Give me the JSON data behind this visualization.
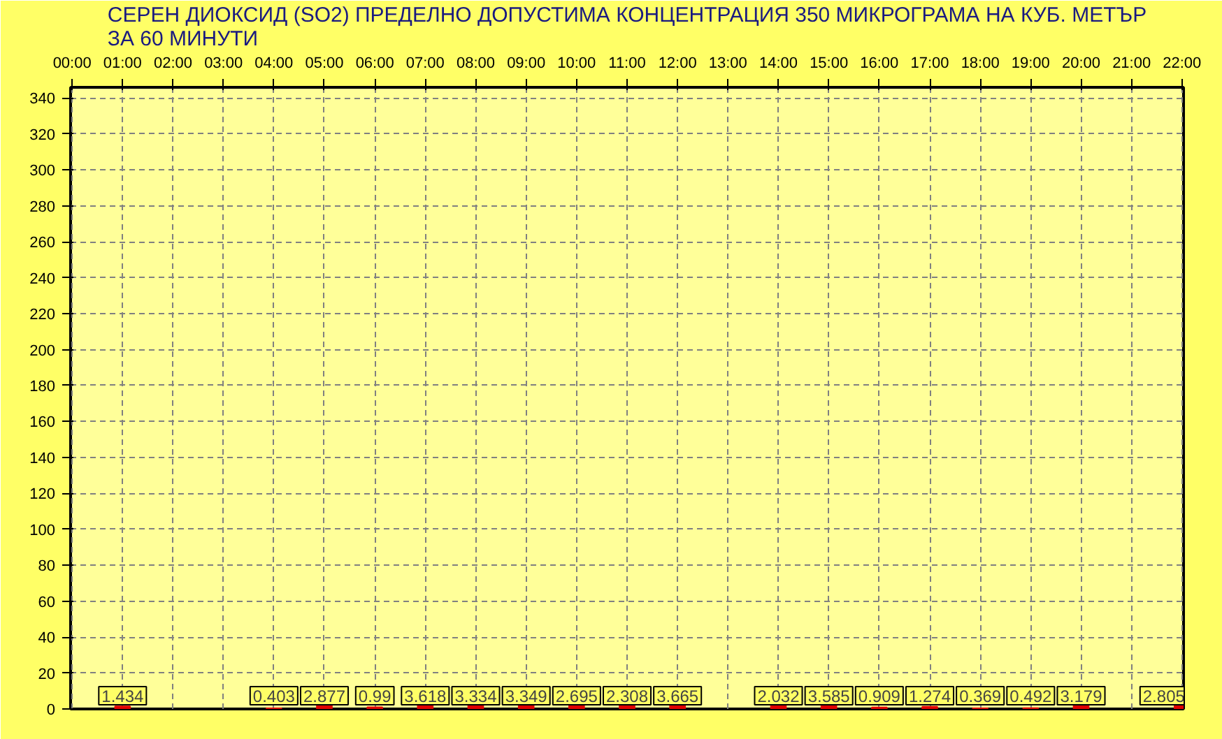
{
  "chart_data": {
    "type": "bar",
    "title": "СЕРЕН ДИОКСИД (SO2) ПРЕДЕЛНО ДОПУСТИМА КОНЦЕНТРАЦИЯ 350 МИКРОГРАМА НА КУБ. МЕТЪР\nЗА 60 МИНУТИ",
    "categories": [
      "00:00",
      "01:00",
      "02:00",
      "03:00",
      "04:00",
      "05:00",
      "06:00",
      "07:00",
      "08:00",
      "09:00",
      "10:00",
      "11:00",
      "12:00",
      "13:00",
      "14:00",
      "15:00",
      "16:00",
      "17:00",
      "18:00",
      "19:00",
      "20:00",
      "21:00",
      "22:00"
    ],
    "values": [
      null,
      1.434,
      null,
      null,
      0.403,
      2.877,
      0.99,
      3.618,
      3.334,
      3.349,
      2.695,
      2.308,
      3.665,
      null,
      2.032,
      3.585,
      0.909,
      1.274,
      0.369,
      0.492,
      3.179,
      null,
      2.805
    ],
    "color": "#e00000",
    "ylim": [
      0,
      346
    ],
    "yticks": [
      0,
      20,
      40,
      60,
      80,
      100,
      120,
      140,
      160,
      180,
      200,
      220,
      240,
      260,
      280,
      300,
      320,
      340
    ],
    "grid": true,
    "data_labels": true
  }
}
